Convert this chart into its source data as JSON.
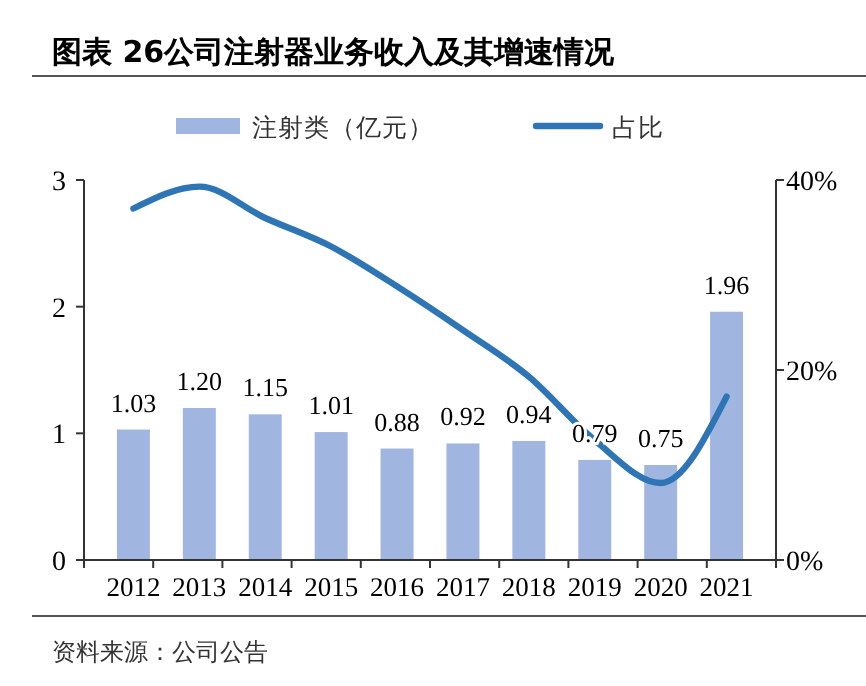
{
  "chart_data": {
    "type": "bar",
    "title": "图表 26公司注射器业务收入及其增速情况",
    "categories": [
      "2012",
      "2013",
      "2014",
      "2015",
      "2016",
      "2017",
      "2018",
      "2019",
      "2020",
      "2021"
    ],
    "series": [
      {
        "name": "注射类（亿元）",
        "color": "#a1b5e1",
        "values": [
          1.03,
          1.2,
          1.15,
          1.01,
          0.88,
          0.92,
          0.94,
          0.79,
          0.75,
          1.96
        ],
        "value_labels": [
          "1.03",
          "1.20",
          "1.15",
          "1.01",
          "0.88",
          "0.92",
          "0.94",
          "0.79",
          "0.75",
          "1.96"
        ]
      },
      {
        "name": "占比",
        "type": "line",
        "axis": "y2",
        "color": "#2e75b6",
        "values": [
          37,
          39.3,
          36,
          33,
          28.8,
          24.2,
          19.3,
          12.6,
          8.1,
          17.2
        ]
      }
    ],
    "ylim": [
      0,
      3
    ],
    "yticks": [
      0,
      1,
      2,
      3
    ],
    "y2lim": [
      0,
      40
    ],
    "y2ticks": [
      {
        "value": 0,
        "label": "0%"
      },
      {
        "value": 20,
        "label": "20%"
      },
      {
        "value": 40,
        "label": "40%"
      }
    ],
    "legend": "top",
    "grid": false,
    "annotations": [
      "资料来源：公司公告"
    ]
  }
}
